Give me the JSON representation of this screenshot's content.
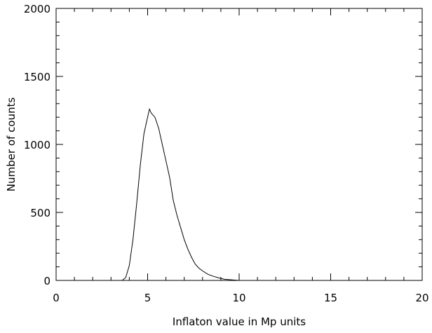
{
  "chart_data": {
    "type": "line",
    "xlabel": "Inflaton value in Mp units",
    "ylabel": "Number of counts",
    "xlim": [
      0,
      20
    ],
    "ylim": [
      0,
      2000
    ],
    "xticks": [
      "0",
      "5",
      "10",
      "15",
      "20"
    ],
    "yticks": [
      "0",
      "500",
      "1000",
      "1500",
      "2000"
    ],
    "grid": false,
    "line_color": "#000000",
    "series": [
      {
        "x": [
          3.6,
          3.8,
          4.0,
          4.2,
          4.4,
          4.6,
          4.8,
          5.0,
          5.1,
          5.2,
          5.3,
          5.4,
          5.6,
          5.8,
          6.0,
          6.2,
          6.4,
          6.6,
          6.8,
          7.0,
          7.2,
          7.4,
          7.6,
          7.8,
          8.0,
          8.3,
          8.6,
          8.9,
          9.2,
          9.5,
          9.8,
          10.0
        ],
        "y": [
          0,
          20,
          110,
          300,
          560,
          850,
          1080,
          1200,
          1260,
          1230,
          1215,
          1200,
          1120,
          1000,
          880,
          760,
          590,
          480,
          390,
          300,
          230,
          170,
          120,
          90,
          70,
          45,
          30,
          18,
          8,
          5,
          2,
          0
        ]
      }
    ]
  }
}
